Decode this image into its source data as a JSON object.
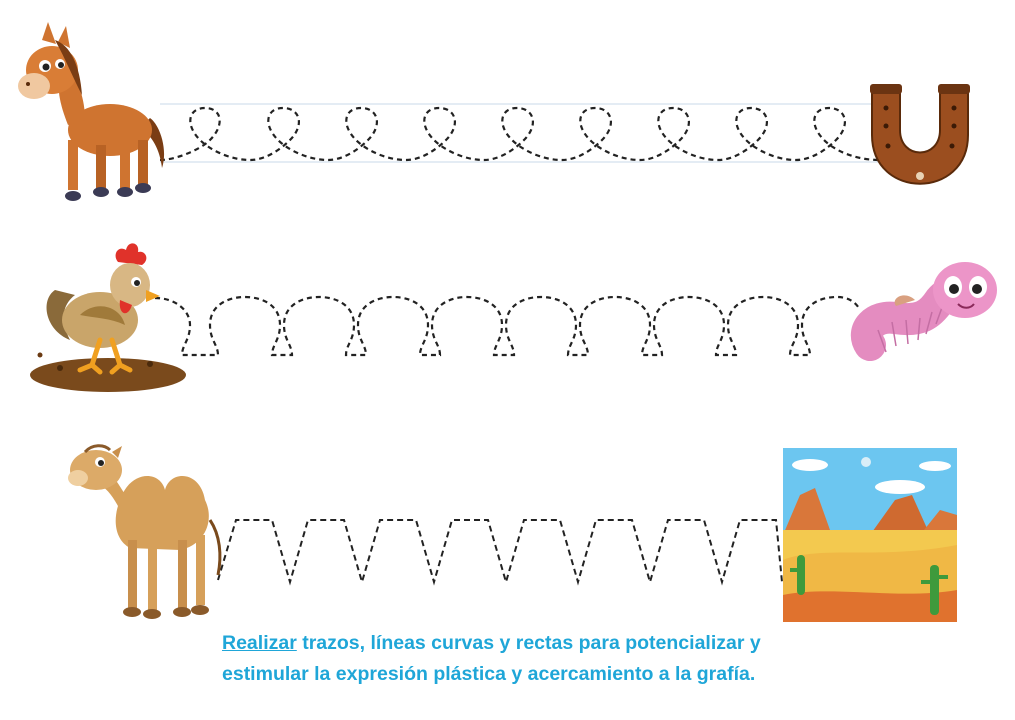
{
  "instruction": {
    "keyword": "Realizar",
    "line1": " trazos, líneas curvas y rectas para potencializar y",
    "line2": "estimular la expresión plástica y acercamiento a la grafía."
  },
  "rows": [
    {
      "start": "horse",
      "end": "horseshoe",
      "pattern": "loops",
      "repeat": 9
    },
    {
      "start": "rooster",
      "end": "worm",
      "pattern": "arches",
      "repeat": 9
    },
    {
      "start": "camel",
      "end": "desert",
      "pattern": "trapezoid-zigzag",
      "repeat": 8
    }
  ],
  "colors": {
    "text": "#1fa6d8",
    "trace": "#222222",
    "guide": "#c9d9e8"
  }
}
